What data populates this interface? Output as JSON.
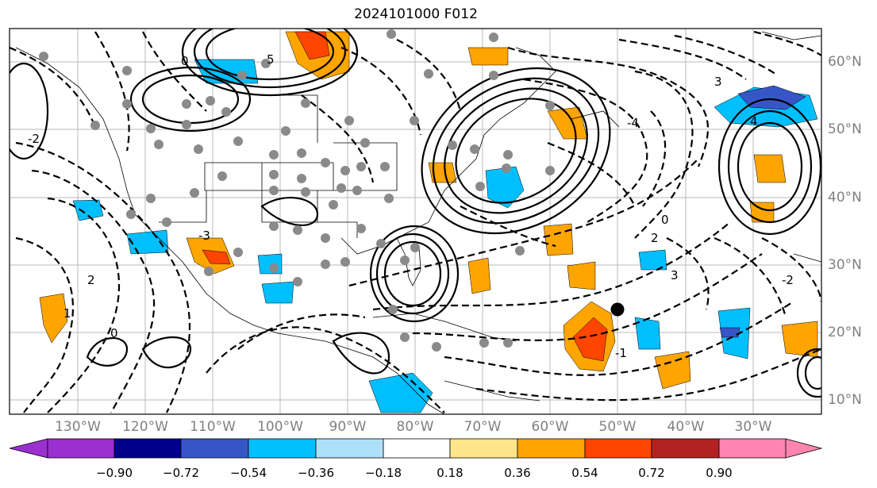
{
  "title": "2024101000 F012",
  "lon_labels": [
    "130°W",
    "120°W",
    "110°W",
    "100°W",
    "90°W",
    "80°W",
    "70°W",
    "60°W",
    "50°W",
    "40°W",
    "30°W"
  ],
  "lat_labels": [
    "60°N",
    "50°N",
    "40°N",
    "30°N",
    "20°N",
    "10°N"
  ],
  "colorbar": {
    "ticks": [
      "−0.90",
      "−0.72",
      "−0.54",
      "−0.36",
      "−0.18",
      "0.18",
      "0.36",
      "0.54",
      "0.72",
      "0.90"
    ],
    "colors": [
      "#9b30d0",
      "#00008b",
      "#3656c8",
      "#00bfff",
      "#afe0fa",
      "#ffffff",
      "#fde68a",
      "#ffa500",
      "#ff4500",
      "#b22222",
      "#ff85b0"
    ]
  },
  "contour_labels": [
    "5",
    "4",
    "3",
    "3",
    "2",
    "2",
    "1",
    "0",
    "0",
    "0",
    "-1",
    "-2",
    "-2",
    "-3",
    "-4"
  ],
  "fill_colors": {
    "orange": "#ffa500",
    "red": "#ff4500",
    "darkred": "#b22222",
    "blue": "#00bfff",
    "purple": "#3656c8"
  }
}
